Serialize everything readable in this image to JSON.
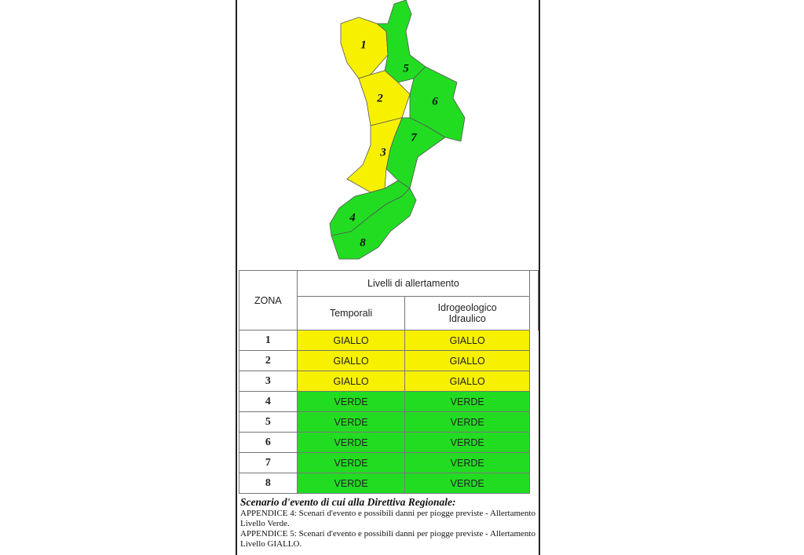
{
  "map": {
    "zone_labels": [
      "1",
      "2",
      "3",
      "4",
      "5",
      "6",
      "7",
      "8"
    ]
  },
  "table": {
    "header": {
      "zone": "ZONA",
      "group": "Livelli di allertamento",
      "columns": [
        "Temporali",
        "Idrogeologico Idraulico"
      ]
    },
    "rows": [
      {
        "zone": "1",
        "temporali": "GIALLO",
        "idro": "GIALLO",
        "color": "#f7f100"
      },
      {
        "zone": "2",
        "temporali": "GIALLO",
        "idro": "GIALLO",
        "color": "#f7f100"
      },
      {
        "zone": "3",
        "temporali": "GIALLO",
        "idro": "GIALLO",
        "color": "#f7f100"
      },
      {
        "zone": "4",
        "temporali": "VERDE",
        "idro": "VERDE",
        "color": "#22dc22"
      },
      {
        "zone": "5",
        "temporali": "VERDE",
        "idro": "VERDE",
        "color": "#22dc22"
      },
      {
        "zone": "6",
        "temporali": "VERDE",
        "idro": "VERDE",
        "color": "#22dc22"
      },
      {
        "zone": "7",
        "temporali": "VERDE",
        "idro": "VERDE",
        "color": "#22dc22"
      },
      {
        "zone": "8",
        "temporali": "VERDE",
        "idro": "VERDE",
        "color": "#22dc22"
      }
    ]
  },
  "footer": {
    "heading": "Scenario d'evento di cui alla Direttiva Regionale:",
    "lines": [
      "APPENDICE 4: Scenari d'evento e possibili danni per piogge previste - Allertamento Livello Verde.",
      "APPENDICE 5: Scenari d'evento e possibili danni per piogge previste - Allertamento Livello GIALLO."
    ]
  }
}
